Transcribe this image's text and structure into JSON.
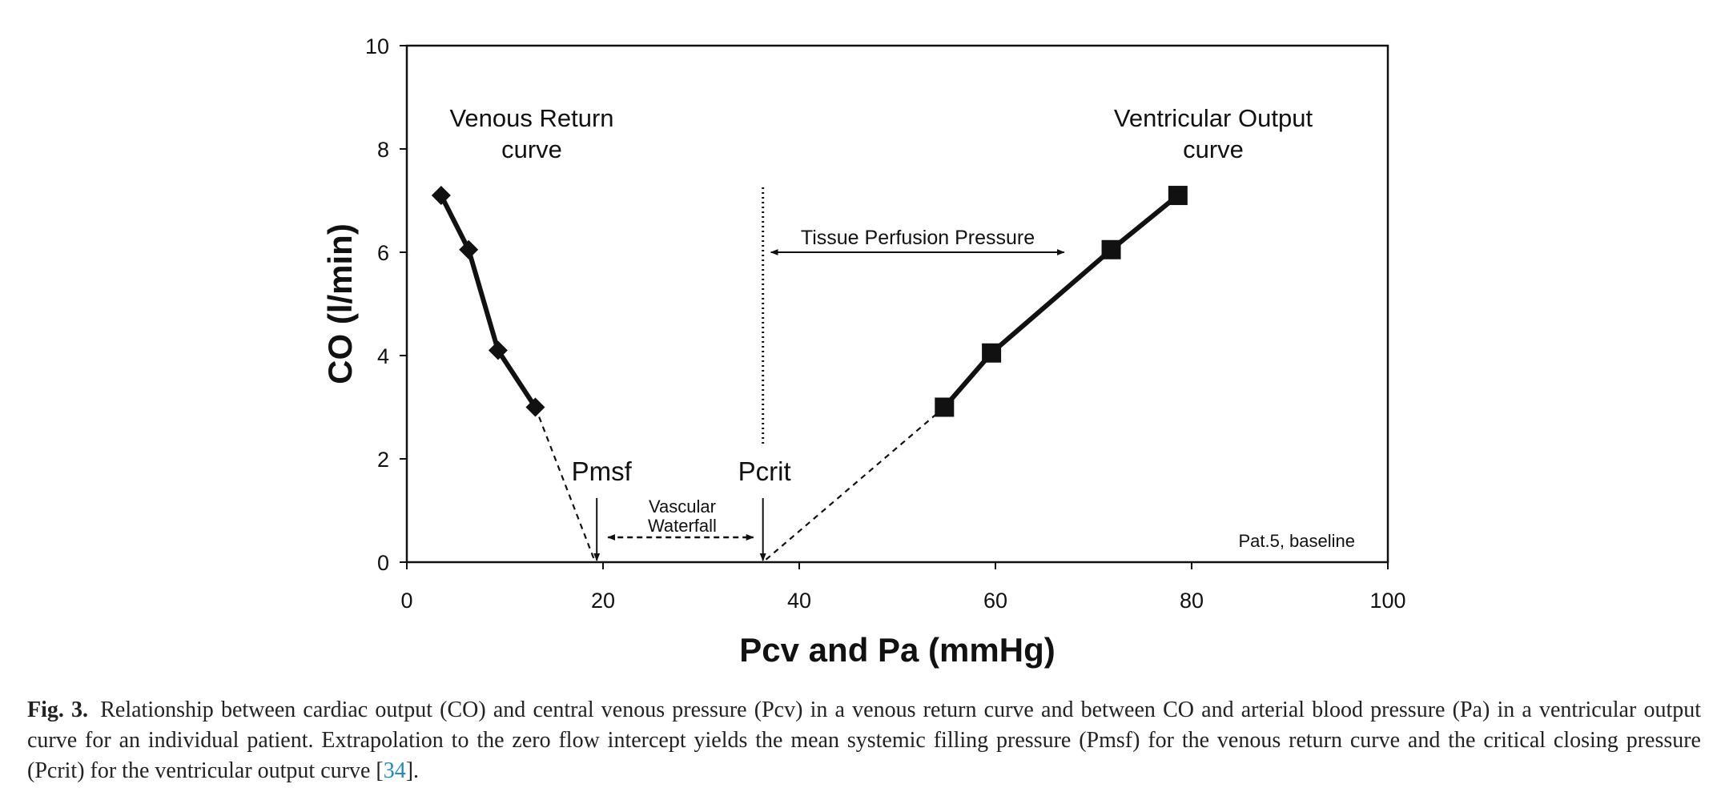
{
  "chart_data": {
    "type": "line",
    "title": "",
    "xlabel": "Pcv and Pa (mmHg)",
    "ylabel": "CO (l/min)",
    "xlim": [
      0,
      100
    ],
    "ylim": [
      0,
      10
    ],
    "x_ticks": [
      0,
      20,
      40,
      60,
      80,
      100
    ],
    "y_ticks": [
      0,
      2,
      4,
      6,
      8,
      10
    ],
    "grid": false,
    "series": [
      {
        "name": "Venous Return curve",
        "marker": "diamond",
        "x": [
          3.5,
          6.3,
          9.3,
          13.1
        ],
        "y": [
          7.1,
          6.05,
          4.1,
          3.0
        ],
        "extrapolation": {
          "x": [
            13.1,
            19.2
          ],
          "y": [
            3.0,
            0
          ]
        }
      },
      {
        "name": "Ventricular Output curve",
        "marker": "square",
        "x": [
          54.8,
          59.6,
          71.8,
          78.6
        ],
        "y": [
          3.0,
          4.05,
          6.05,
          7.1
        ],
        "extrapolation": {
          "x": [
            54.8,
            36.3
          ],
          "y": [
            3.0,
            0
          ]
        }
      }
    ],
    "annotations": {
      "venous_label_line1": "Venous Return",
      "venous_label_line2": "curve",
      "ventricular_label_line1": "Ventricular Output",
      "ventricular_label_line2": "curve",
      "pmsf": {
        "label": "Pmsf",
        "x": 19.2
      },
      "pcrit": {
        "label": "Pcrit",
        "x": 36.3
      },
      "waterfall_line1": "Vascular",
      "waterfall_line2": "Waterfall",
      "tissue_perfusion": {
        "label": "Tissue Perfusion Pressure",
        "x_from": 36.3,
        "x_to": 67,
        "y": 6
      },
      "corner_note": "Pat.5, baseline"
    }
  },
  "caption": {
    "label": "Fig. 3.",
    "text": "Relationship between cardiac output (CO) and central venous pressure (Pcv) in a venous return curve and between CO and arterial blood pressure (Pa) in a ventricular output curve for an individual patient. Extrapolation to the zero flow intercept yields the mean systemic filling pressure (Pmsf) for the venous return curve and the critical closing pressure (Pcrit) for the ventricular output curve [",
    "ref": "34",
    "tail": "]."
  },
  "colors": {
    "ink": "#111111",
    "link": "#1f8ac2"
  }
}
